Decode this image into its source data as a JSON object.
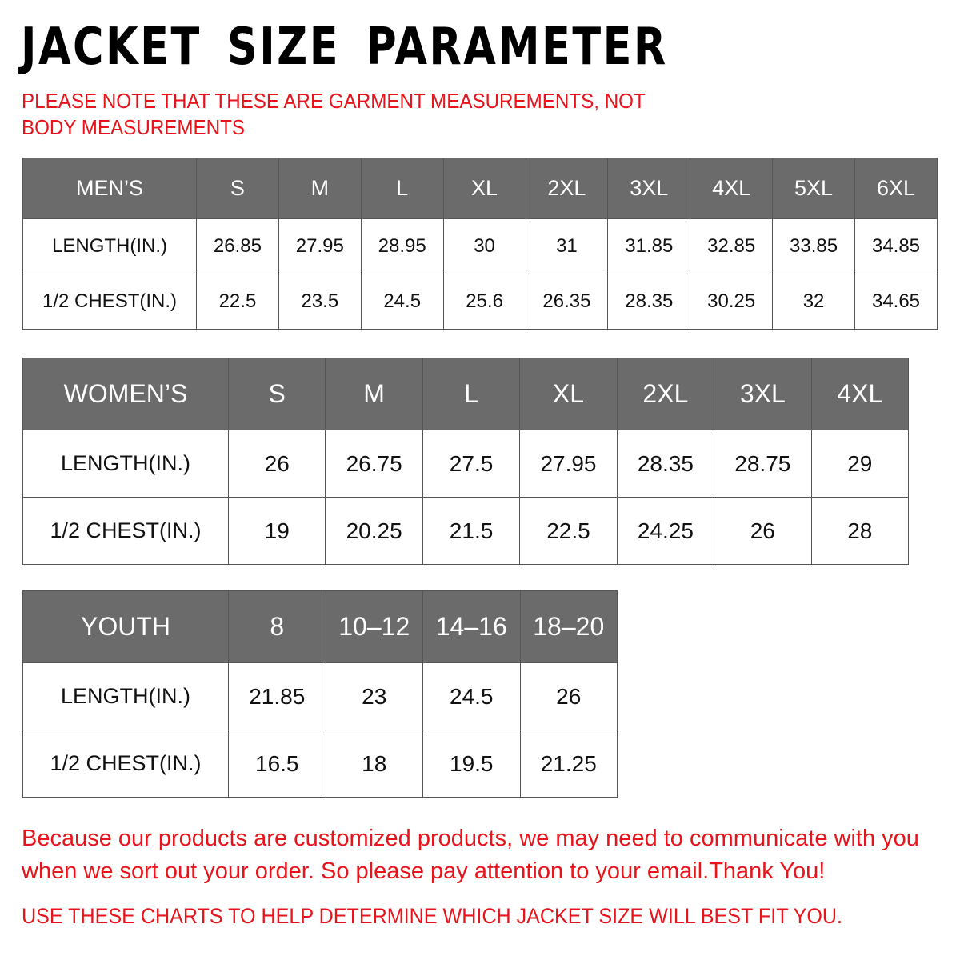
{
  "title": "JACKET SIZE PARAMETER",
  "note": "PLEASE NOTE THAT THESE ARE GARMENT MEASUREMENTS, NOT BODY MEASUREMENTS",
  "colors": {
    "header_bg": "#6b6b6b",
    "accent_red": "#e8141b"
  },
  "tables": {
    "men": {
      "header": [
        "MEN’S",
        "S",
        "M",
        "L",
        "XL",
        "2XL",
        "3XL",
        "4XL",
        "5XL",
        "6XL"
      ],
      "rows": [
        [
          "LENGTH(IN.)",
          "26.85",
          "27.95",
          "28.95",
          "30",
          "31",
          "31.85",
          "32.85",
          "33.85",
          "34.85"
        ],
        [
          "1/2 CHEST(IN.)",
          "22.5",
          "23.5",
          "24.5",
          "25.6",
          "26.35",
          "28.35",
          "30.25",
          "32",
          "34.65"
        ]
      ]
    },
    "women": {
      "header": [
        "WOMEN’S",
        "S",
        "M",
        "L",
        "XL",
        "2XL",
        "3XL",
        "4XL"
      ],
      "rows": [
        [
          "LENGTH(IN.)",
          "26",
          "26.75",
          "27.5",
          "27.95",
          "28.35",
          "28.75",
          "29"
        ],
        [
          "1/2 CHEST(IN.)",
          "19",
          "20.25",
          "21.5",
          "22.5",
          "24.25",
          "26",
          "28"
        ]
      ]
    },
    "youth": {
      "header": [
        "YOUTH",
        "8",
        "10–12",
        "14–16",
        "18–20"
      ],
      "rows": [
        [
          "LENGTH(IN.)",
          "21.85",
          "23",
          "24.5",
          "26"
        ],
        [
          "1/2 CHEST(IN.)",
          "16.5",
          "18",
          "19.5",
          "21.25"
        ]
      ]
    }
  },
  "footer": {
    "message": "Because our products are customized products, we may need to communicate with you when we sort out your order. So please pay attention to your email.Thank You!",
    "instruction": "USE THESE CHARTS TO HELP DETERMINE WHICH JACKET SIZE WILL BEST FIT YOU."
  }
}
